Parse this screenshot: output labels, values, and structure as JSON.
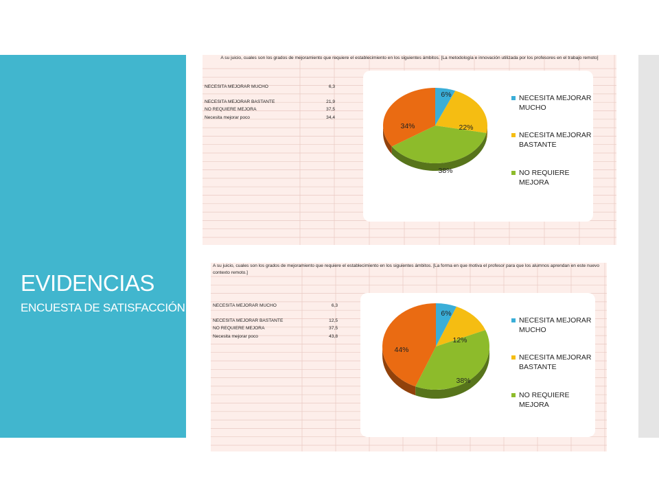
{
  "slide": {
    "title": "EVIDENCIAS",
    "subtitle": "ENCUESTA DE SATISFACCIÓN"
  },
  "colors": {
    "panel": "#41b6ce",
    "series": [
      "#3aaed8",
      "#f5bd12",
      "#8dbb2b",
      "#ea6b12"
    ]
  },
  "sheets": [
    {
      "header": "A su juicio, cuales son los grados de mejoramiento  que requiere el establecimiento en los siguientes ámbitos. [La metodología e innovación utilizada por los profesores en el trabajo remoto]",
      "rows": [
        {
          "label": "NECESITA  MEJORAR MUCHO",
          "value": "6,3"
        },
        {
          "label": "NECESITA  MEJORAR BASTANTE",
          "value": "21,9"
        },
        {
          "label": "NO REQUIERE  MEJORA",
          "value": "37,5"
        },
        {
          "label": "Necesita mejorar poco",
          "value": "34,4"
        }
      ]
    },
    {
      "header": "A su juicio, cuales son los grados de mejoramiento  que requiere el establecimiento en los siguientes ámbitos. [La forma en que motiva el profesor para que los alumnos aprendan en este nuevo contexto remoto.]",
      "rows": [
        {
          "label": "NECESITA  MEJORAR MUCHO",
          "value": "6,3"
        },
        {
          "label": "NECESITA  MEJORAR BASTANTE",
          "value": "12,5"
        },
        {
          "label": "NO REQUIERE  MEJORA",
          "value": "37,5"
        },
        {
          "label": "Necesita mejorar poco",
          "value": "43,8"
        }
      ]
    }
  ],
  "chart_data": [
    {
      "type": "pie",
      "categories": [
        "NECESITA MEJORAR MUCHO",
        "NECESITA MEJORAR BASTANTE",
        "NO REQUIERE MEJORA",
        "Necesita mejorar poco"
      ],
      "values": [
        6.3,
        21.9,
        37.5,
        34.4
      ],
      "data_labels": [
        "6%",
        "22%",
        "38%",
        "34%"
      ],
      "legend": [
        "NECESITA MEJORAR MUCHO",
        "NECESITA MEJORAR BASTANTE",
        "NO REQUIERE MEJORA"
      ],
      "legend_position": "right",
      "style": "3d"
    },
    {
      "type": "pie",
      "categories": [
        "NECESITA MEJORAR MUCHO",
        "NECESITA MEJORAR BASTANTE",
        "NO REQUIERE MEJORA",
        "Necesita mejorar poco"
      ],
      "values": [
        6.3,
        12.5,
        37.5,
        43.8
      ],
      "data_labels": [
        "6%",
        "12%",
        "38%",
        "44%"
      ],
      "legend": [
        "NECESITA MEJORAR MUCHO",
        "NECESITA MEJORAR BASTANTE",
        "NO REQUIERE MEJORA"
      ],
      "legend_position": "right",
      "style": "3d"
    }
  ]
}
